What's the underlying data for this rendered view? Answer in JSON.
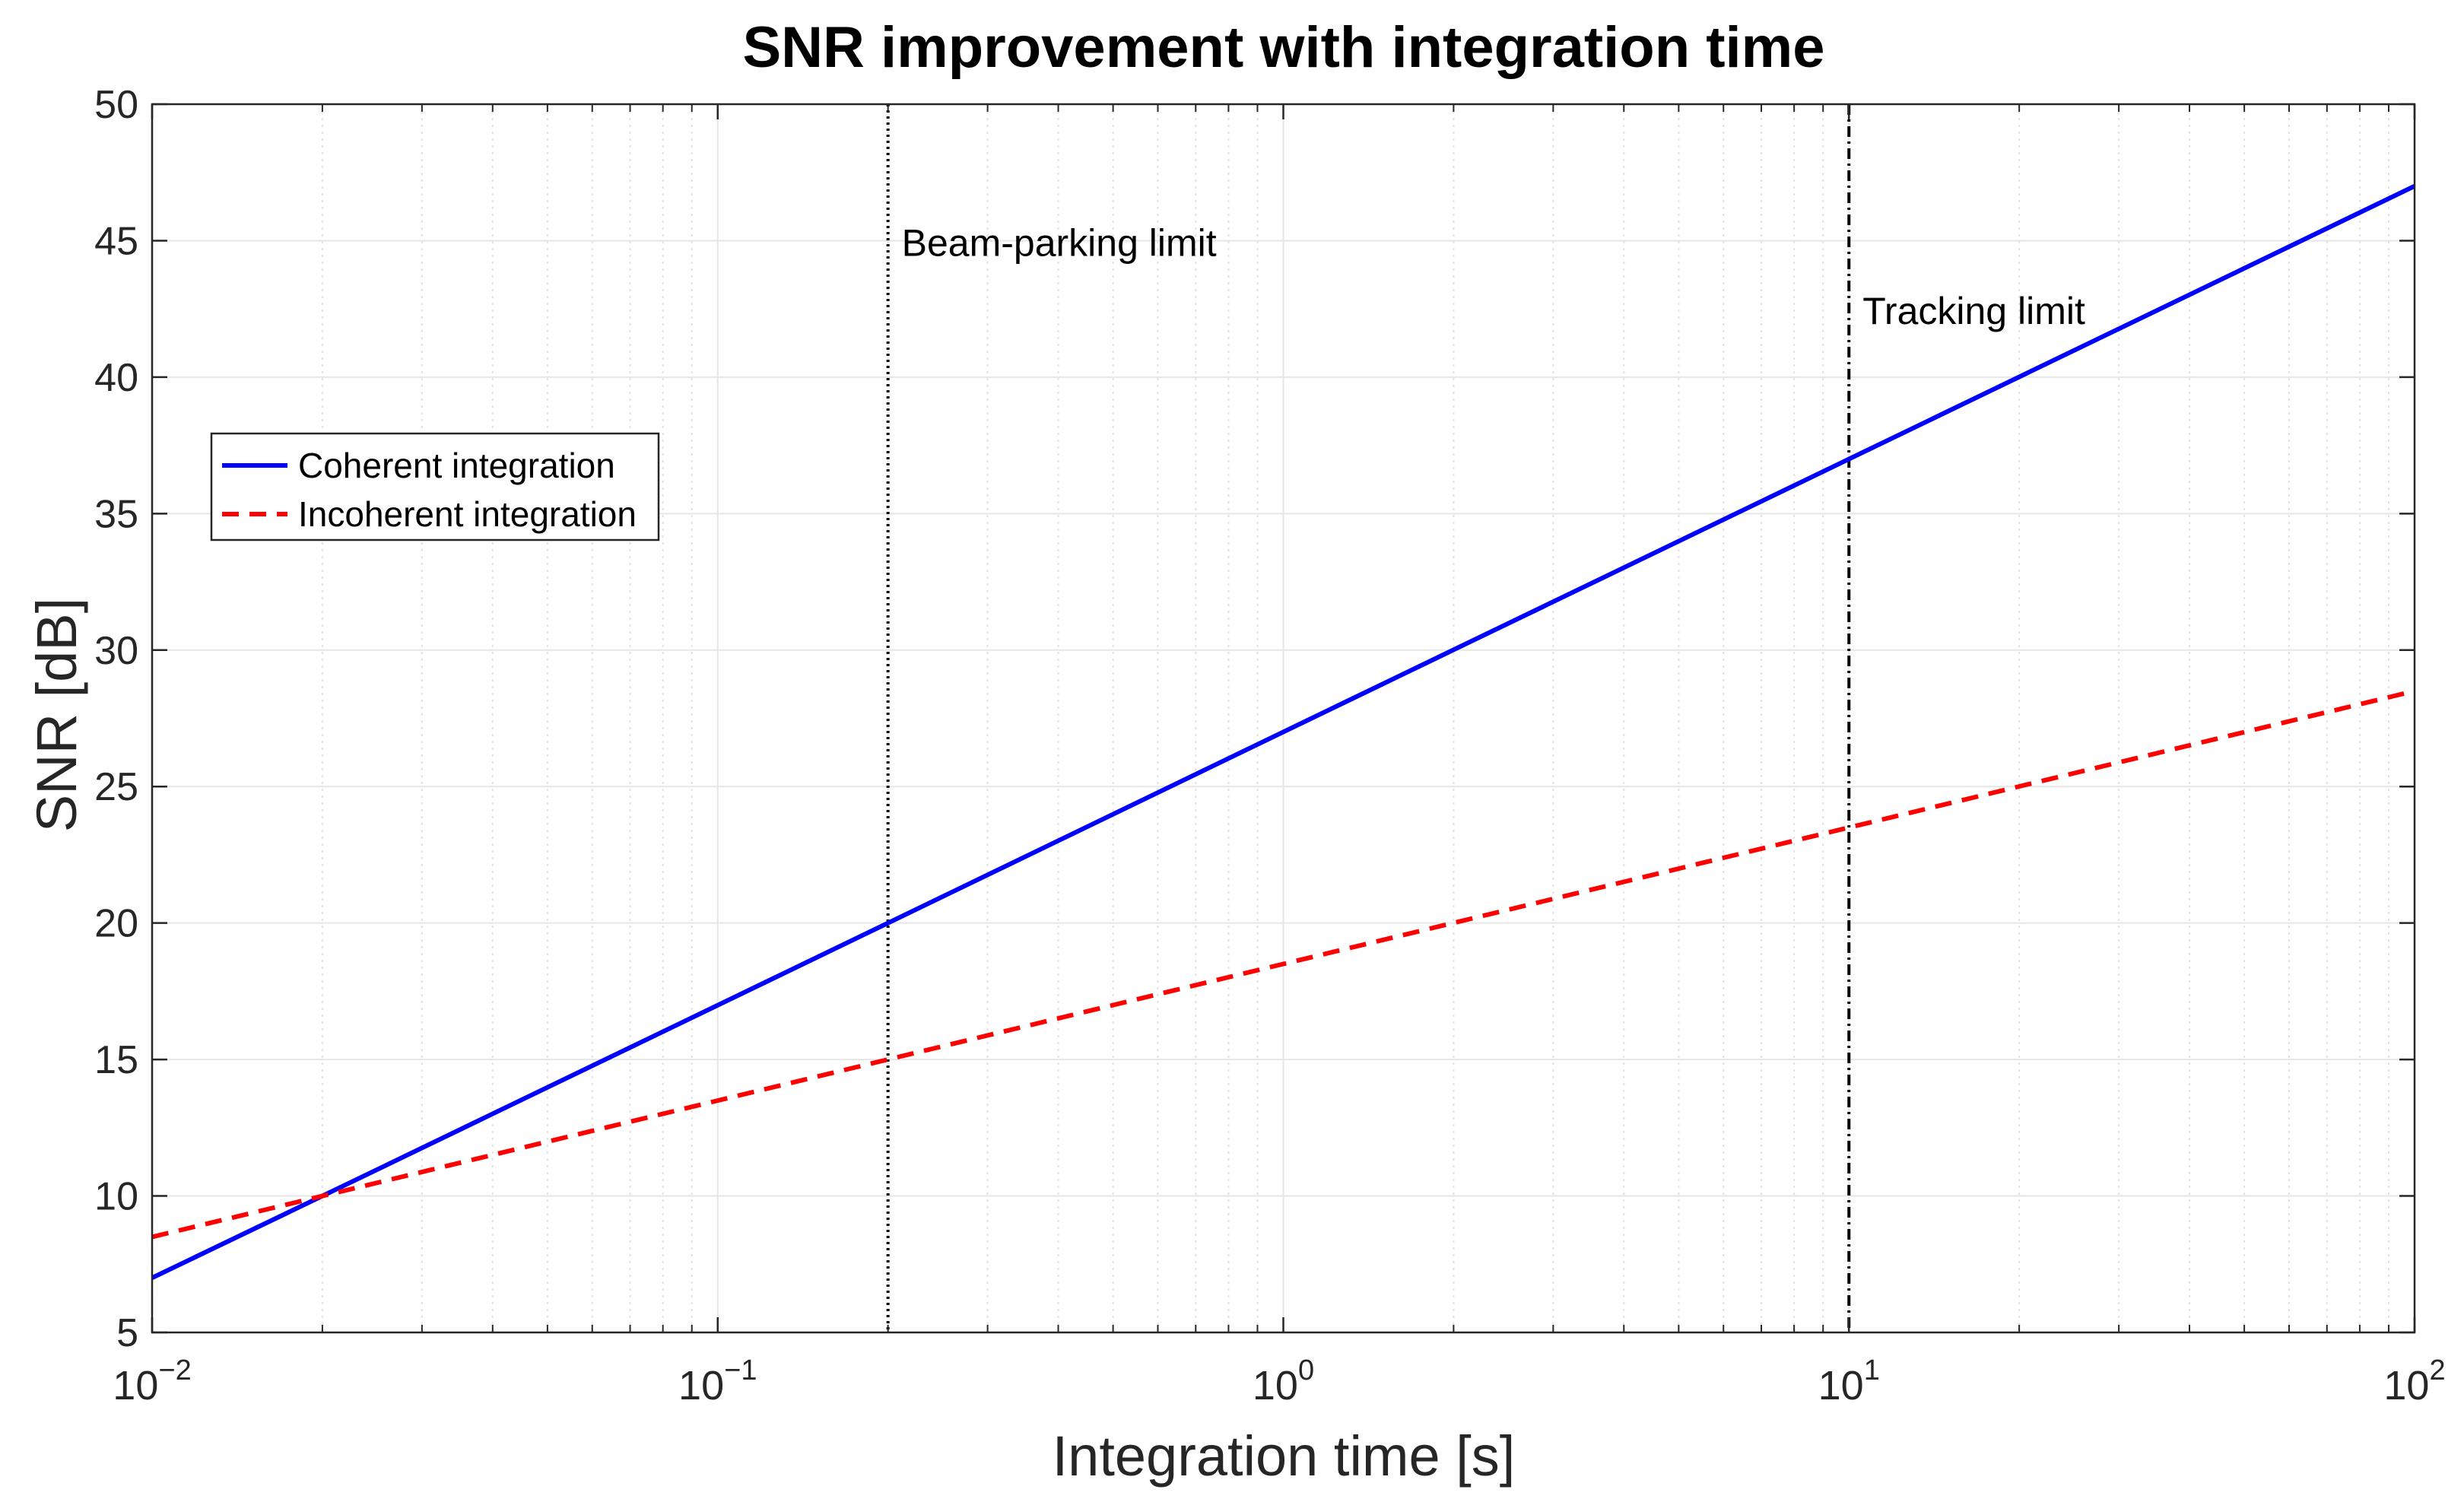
{
  "chart_data": {
    "type": "line",
    "title": "SNR improvement with integration time",
    "xlabel": "Integration time [s]",
    "ylabel": "SNR [dB]",
    "xscale": "log",
    "xlim": [
      0.01,
      100
    ],
    "ylim": [
      5,
      50
    ],
    "grid": true,
    "minor_grid": true,
    "legend_position": "left",
    "x_ticks": [
      {
        "value": 0.01,
        "base": "10",
        "exp": "−2"
      },
      {
        "value": 0.1,
        "base": "10",
        "exp": "−1"
      },
      {
        "value": 1,
        "base": "10",
        "exp": "0"
      },
      {
        "value": 10,
        "base": "10",
        "exp": "1"
      },
      {
        "value": 100,
        "base": "10",
        "exp": "2"
      }
    ],
    "y_ticks": [
      5,
      10,
      15,
      20,
      25,
      30,
      35,
      40,
      45,
      50
    ],
    "series": [
      {
        "name": "Coherent integration",
        "color": "#0000ff",
        "style": "solid",
        "x": [
          0.01,
          0.02,
          0.2,
          1,
          10,
          100
        ],
        "y": [
          7,
          10,
          20,
          27,
          37,
          47
        ]
      },
      {
        "name": "Incoherent integration",
        "color": "#ff0000",
        "style": "dashed",
        "x": [
          0.01,
          0.02,
          0.2,
          1,
          10,
          100
        ],
        "y": [
          8.5,
          10,
          15,
          18.5,
          23.5,
          28.5
        ]
      }
    ],
    "vlines": [
      {
        "x": 0.2,
        "label": "Beam-parking limit",
        "style": "dotted",
        "color": "#000000",
        "label_y": 45
      },
      {
        "x": 10,
        "label": "Tracking limit",
        "style": "dashdot",
        "color": "#000000",
        "label_y": 42.5
      }
    ]
  }
}
